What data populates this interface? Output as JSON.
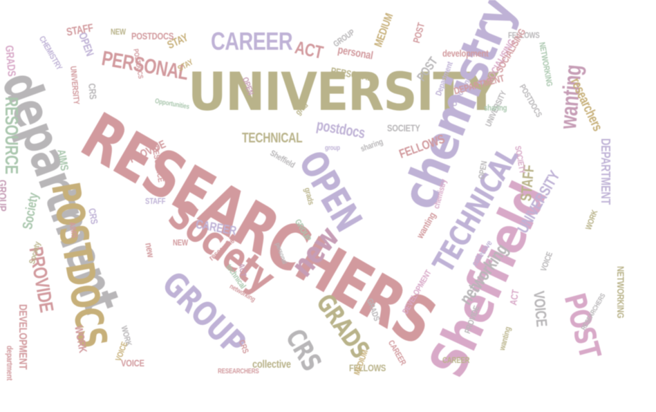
{
  "palette": {
    "rose": "#d29a9e",
    "sage": "#b9b38a",
    "lavender": "#bfb2d6",
    "grey": "#b8b6b8",
    "pink": "#d8a9c8",
    "mint": "#aac7ae",
    "khaki": "#c7b07a",
    "mauve": "#c69db6"
  },
  "words": [
    {
      "text": "UNIVERSITY",
      "color": "sage"
    },
    {
      "text": "RESEARCHERS",
      "color": "rose"
    },
    {
      "text": "department",
      "color": "grey"
    },
    {
      "text": "chemistry",
      "color": "lavender"
    },
    {
      "text": "Sheffield",
      "color": "pink"
    },
    {
      "text": "POSTDOCS",
      "color": "khaki"
    },
    {
      "text": "Society",
      "color": "rose"
    },
    {
      "text": "TECHNICAL",
      "color": "lavender"
    },
    {
      "text": "OPEN",
      "color": "lavender"
    },
    {
      "text": "GROUP",
      "color": "lavender"
    },
    {
      "text": "new",
      "color": "mauve"
    },
    {
      "text": "GRADS",
      "color": "sage"
    },
    {
      "text": "CRS",
      "color": "grey"
    },
    {
      "text": "POST",
      "color": "pink"
    },
    {
      "text": "PERSONAL",
      "color": "rose"
    },
    {
      "text": "CAREER",
      "color": "lavender"
    },
    {
      "text": "PROVIDE",
      "color": "rose"
    },
    {
      "text": "RESOURCE",
      "color": "mint"
    },
    {
      "text": "wanting",
      "color": "mauve"
    },
    {
      "text": "networking",
      "color": "grey"
    },
    {
      "text": "UNIVERSITY",
      "color": "lavender"
    },
    {
      "text": "DEPARTMENT",
      "color": "lavender"
    },
    {
      "text": "DEVELOPMENT",
      "color": "rose"
    },
    {
      "text": "VOICE",
      "color": "grey"
    },
    {
      "text": "ACT",
      "color": "rose"
    },
    {
      "text": "STAFF",
      "color": "sage"
    },
    {
      "text": "AIMS",
      "color": "mint"
    },
    {
      "text": "Society",
      "color": "mint"
    },
    {
      "text": "postdocs",
      "color": "lavender"
    },
    {
      "text": "TECHNICAL",
      "color": "sage"
    },
    {
      "text": "FELLOWS",
      "color": "rose"
    },
    {
      "text": "researchers",
      "color": "khaki"
    },
    {
      "text": "SOCIETY",
      "color": "grey"
    },
    {
      "text": "NETWORKING",
      "color": "sage"
    },
    {
      "text": "WORK",
      "color": "rose"
    },
    {
      "text": "GROUP",
      "color": "mauve"
    },
    {
      "text": "collective",
      "color": "sage"
    },
    {
      "text": "CAREER",
      "color": "lavender"
    },
    {
      "text": "STAY",
      "color": "khaki"
    },
    {
      "text": "GRADS",
      "color": "pink"
    },
    {
      "text": "OPEN",
      "color": "lavender"
    },
    {
      "text": "MEDIUM",
      "color": "khaki"
    },
    {
      "text": "POSTDOCS",
      "color": "rose"
    },
    {
      "text": "NEW",
      "color": "sage"
    },
    {
      "text": "STAFF",
      "color": "rose"
    },
    {
      "text": "CHEMISTRY",
      "color": "lavender"
    },
    {
      "text": "FELLOWS",
      "color": "sage"
    },
    {
      "text": "VOICE",
      "color": "rose"
    },
    {
      "text": "personal",
      "color": "rose"
    },
    {
      "text": "SOCIALISING",
      "color": "pink"
    },
    {
      "text": "development",
      "color": "rose"
    },
    {
      "text": "CRS",
      "color": "grey"
    },
    {
      "text": "Opportunities",
      "color": "lavender"
    },
    {
      "text": "PROVIDE",
      "color": "rose"
    },
    {
      "text": "RESEARCHERS",
      "color": "rose"
    },
    {
      "text": "sharing",
      "color": "grey"
    },
    {
      "text": "ACT",
      "color": "pink"
    },
    {
      "text": "Sheffield",
      "color": "grey"
    },
    {
      "text": "WORK",
      "color": "sage"
    },
    {
      "text": "grad",
      "color": "sage"
    },
    {
      "text": "new",
      "color": "rose"
    },
    {
      "text": "wanting",
      "color": "rose"
    },
    {
      "text": "GROUP",
      "color": "mint"
    },
    {
      "text": "CAREER",
      "color": "sage"
    },
    {
      "text": "UNIVERSITY",
      "color": "rose"
    },
    {
      "text": "POST",
      "color": "grey"
    },
    {
      "text": "DEPARTMENT",
      "color": "rose"
    },
    {
      "text": "personal",
      "color": "grey"
    },
    {
      "text": "group",
      "color": "lavender"
    },
    {
      "text": "networking",
      "color": "rose"
    },
    {
      "text": "Opportunities",
      "color": "mint"
    },
    {
      "text": "POSTDOCS",
      "color": "rose"
    },
    {
      "text": "Department",
      "color": "lavender"
    },
    {
      "text": "NETWORKING",
      "color": "mint"
    },
    {
      "text": "GROUP",
      "color": "grey"
    },
    {
      "text": "STAY",
      "color": "khaki"
    },
    {
      "text": "SOCIETY",
      "color": "pink"
    },
    {
      "text": "CRS",
      "color": "lavender"
    },
    {
      "text": "OPEN",
      "color": "grey"
    },
    {
      "text": "POST",
      "color": "rose"
    },
    {
      "text": "ACT",
      "color": "mauve"
    },
    {
      "text": "NEW",
      "color": "rose"
    },
    {
      "text": "Society",
      "color": "sage"
    },
    {
      "text": "MEDIUM",
      "color": "khaki"
    },
    {
      "text": "FELLOWS",
      "color": "grey"
    },
    {
      "text": "RESOURCE",
      "color": "rose"
    },
    {
      "text": "SOCIALISING",
      "color": "rose"
    },
    {
      "text": "AIMS",
      "color": "rose"
    },
    {
      "text": "VOICE",
      "color": "grey"
    },
    {
      "text": "collective",
      "color": "lavender"
    },
    {
      "text": "PERSONAL",
      "color": "sage"
    },
    {
      "text": "technical",
      "color": "mint"
    },
    {
      "text": "STAFF",
      "color": "lavender"
    },
    {
      "text": "CAREER",
      "color": "rose"
    },
    {
      "text": "WORK",
      "color": "grey"
    },
    {
      "text": "researchers",
      "color": "rose"
    },
    {
      "text": "DEVELOPMENT",
      "color": "pink"
    },
    {
      "text": "UNIVERSITY",
      "color": "grey"
    },
    {
      "text": "grads",
      "color": "sage"
    },
    {
      "text": "chemistry",
      "color": "pink"
    },
    {
      "text": "OPEN",
      "color": "mauve"
    },
    {
      "text": "PROVIDE",
      "color": "grey"
    },
    {
      "text": "wanting",
      "color": "sage"
    },
    {
      "text": "RESEARCHERS",
      "color": "grey"
    },
    {
      "text": "CRS",
      "color": "rose"
    },
    {
      "text": "department",
      "color": "rose"
    },
    {
      "text": "sharing",
      "color": "mint"
    },
    {
      "text": "POSTDOCS",
      "color": "grey"
    },
    {
      "text": "VOICE",
      "color": "khaki"
    },
    {
      "text": "GRADS",
      "color": "grey"
    }
  ]
}
